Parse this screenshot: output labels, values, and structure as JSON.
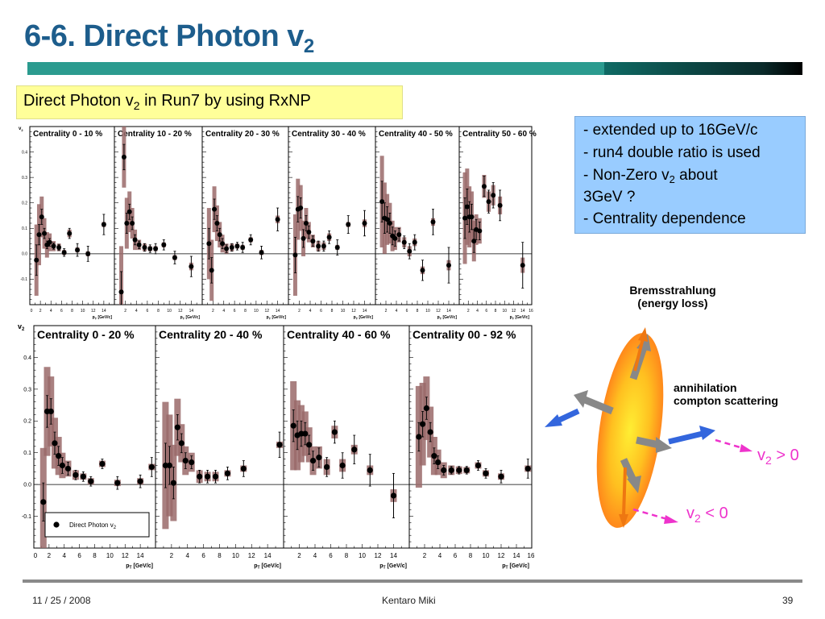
{
  "slide": {
    "title_main": "6-6. Direct Photon v",
    "title_sub": "2",
    "subtitle_main": "Direct Photon v",
    "subtitle_sub": "2",
    "subtitle_rest": " in Run7 by using RxNP"
  },
  "notes": {
    "line1": "- extended up to 16GeV/c",
    "line2": "- run4 double ratio is used",
    "line3a": "- Non-Zero v",
    "line3sub": "2",
    "line3b": " about",
    "line4": "3GeV ?",
    "line5": "- Centrality dependence"
  },
  "diagram": {
    "brem_line1": "Bremsstrahlung",
    "brem_line2": "(energy loss)",
    "ann_line1": "annihilation",
    "ann_line2": "compton scattering",
    "v2pos_a": "v",
    "v2pos_sub": "2",
    "v2pos_b": " > 0",
    "v2neg_a": "v",
    "v2neg_sub": "2",
    "v2neg_b": " < 0",
    "colors": {
      "ellipse_outer": "#ff7a1a",
      "ellipse_inner": "#ffee33",
      "arrow_blue": "#3366dd",
      "arrow_orange": "#ee7711",
      "arrow_gray": "#888888",
      "arrow_pink": "#ee33cc"
    }
  },
  "footer": {
    "date": "11 / 25 / 2008",
    "author": "Kentaro Miki",
    "page": "39"
  },
  "chart_data": [
    {
      "type": "scatter",
      "title": "Centrality 0 - 10 %",
      "ylim": [
        -0.2,
        0.5
      ],
      "xlim": [
        0,
        16
      ],
      "yticks": [
        "0.4",
        "0.3",
        "0.2",
        "0.1",
        "0.0",
        "-0.1"
      ],
      "xticks": [
        "0",
        "2",
        "4",
        "6",
        "8",
        "10",
        "12",
        "14"
      ],
      "ylabel": "v",
      "ylabel_sub": "2",
      "xlabel": "p",
      "xlabel_sub": "T",
      "xlabel_unit": "[GeV/c]",
      "points": [
        {
          "x": 1.25,
          "y": -0.025,
          "err": 0.06,
          "sys": 0.14
        },
        {
          "x": 1.75,
          "y": 0.075,
          "err": 0.04,
          "sys": 0.12
        },
        {
          "x": 2.25,
          "y": 0.145,
          "err": 0.03,
          "sys": 0.08
        },
        {
          "x": 2.75,
          "y": 0.08,
          "err": 0.02,
          "sys": 0.06
        },
        {
          "x": 3.25,
          "y": 0.035,
          "err": 0.015,
          "sys": 0.05
        },
        {
          "x": 3.75,
          "y": 0.045,
          "err": 0.015,
          "sys": 0.035
        },
        {
          "x": 4.5,
          "y": 0.03,
          "err": 0.012,
          "sys": 0.02
        },
        {
          "x": 5.5,
          "y": 0.025,
          "err": 0.012,
          "sys": 0.015
        },
        {
          "x": 6.5,
          "y": 0.005,
          "err": 0.015,
          "sys": 0.01
        },
        {
          "x": 7.5,
          "y": 0.08,
          "err": 0.02,
          "sys": 0.015
        },
        {
          "x": 9,
          "y": 0.015,
          "err": 0.025,
          "sys": 0.01
        },
        {
          "x": 11,
          "y": 0.0,
          "err": 0.03,
          "sys": 0.01
        },
        {
          "x": 14,
          "y": 0.115,
          "err": 0.04,
          "sys": 0.01
        }
      ]
    },
    {
      "type": "scatter",
      "title": "Centrality 10 - 20 %",
      "ylim": [
        -0.2,
        0.5
      ],
      "xlim": [
        0,
        16
      ],
      "xticks": [
        "2",
        "4",
        "6",
        "8",
        "10",
        "12",
        "14"
      ],
      "xlabel": "p",
      "xlabel_sub": "T",
      "xlabel_unit": "[GeV/c]",
      "points": [
        {
          "x": 1.25,
          "y": -0.15,
          "err": 0.08,
          "sys": 0.18
        },
        {
          "x": 1.75,
          "y": 0.38,
          "err": 0.05,
          "sys": 0.12
        },
        {
          "x": 2.25,
          "y": 0.12,
          "err": 0.04,
          "sys": 0.1
        },
        {
          "x": 2.75,
          "y": 0.165,
          "err": 0.03,
          "sys": 0.08
        },
        {
          "x": 3.25,
          "y": 0.12,
          "err": 0.025,
          "sys": 0.06
        },
        {
          "x": 3.75,
          "y": 0.055,
          "err": 0.02,
          "sys": 0.04
        },
        {
          "x": 4.5,
          "y": 0.035,
          "err": 0.015,
          "sys": 0.02
        },
        {
          "x": 5.5,
          "y": 0.025,
          "err": 0.015,
          "sys": 0.015
        },
        {
          "x": 6.5,
          "y": 0.02,
          "err": 0.015,
          "sys": 0.01
        },
        {
          "x": 7.5,
          "y": 0.02,
          "err": 0.02,
          "sys": 0.01
        },
        {
          "x": 9,
          "y": 0.035,
          "err": 0.02,
          "sys": 0.01
        },
        {
          "x": 11,
          "y": -0.015,
          "err": 0.025,
          "sys": 0.01
        },
        {
          "x": 14,
          "y": -0.05,
          "err": 0.04,
          "sys": 0.015
        }
      ]
    },
    {
      "type": "scatter",
      "title": "Centrality 20 - 30 %",
      "ylim": [
        -0.2,
        0.5
      ],
      "xlim": [
        0,
        16
      ],
      "xticks": [
        "2",
        "4",
        "6",
        "8",
        "10",
        "12",
        "14"
      ],
      "xlabel": "p",
      "xlabel_sub": "T",
      "xlabel_unit": "[GeV/c]",
      "points": [
        {
          "x": 1.25,
          "y": 0.04,
          "err": 0.06,
          "sys": 0.14
        },
        {
          "x": 1.75,
          "y": -0.065,
          "err": 0.05,
          "sys": 0.12
        },
        {
          "x": 2.25,
          "y": 0.175,
          "err": 0.04,
          "sys": 0.09
        },
        {
          "x": 2.75,
          "y": 0.12,
          "err": 0.03,
          "sys": 0.07
        },
        {
          "x": 3.25,
          "y": 0.075,
          "err": 0.025,
          "sys": 0.05
        },
        {
          "x": 3.75,
          "y": 0.04,
          "err": 0.02,
          "sys": 0.035
        },
        {
          "x": 4.5,
          "y": 0.02,
          "err": 0.015,
          "sys": 0.02
        },
        {
          "x": 5.5,
          "y": 0.025,
          "err": 0.015,
          "sys": 0.015
        },
        {
          "x": 6.5,
          "y": 0.03,
          "err": 0.015,
          "sys": 0.01
        },
        {
          "x": 7.5,
          "y": 0.025,
          "err": 0.02,
          "sys": 0.01
        },
        {
          "x": 9,
          "y": 0.055,
          "err": 0.02,
          "sys": 0.01
        },
        {
          "x": 11,
          "y": 0.005,
          "err": 0.025,
          "sys": 0.01
        },
        {
          "x": 14,
          "y": 0.135,
          "err": 0.045,
          "sys": 0.015
        }
      ]
    },
    {
      "type": "scatter",
      "title": "Centrality 30 - 40 %",
      "ylim": [
        -0.2,
        0.5
      ],
      "xlim": [
        0,
        16
      ],
      "xticks": [
        "2",
        "4",
        "6",
        "8",
        "10",
        "12",
        "14"
      ],
      "xlabel": "p",
      "xlabel_sub": "T",
      "xlabel_unit": "[GeV/c]",
      "points": [
        {
          "x": 1.25,
          "y": -0.005,
          "err": 0.07,
          "sys": 0.16
        },
        {
          "x": 1.75,
          "y": 0.175,
          "err": 0.05,
          "sys": 0.12
        },
        {
          "x": 2.25,
          "y": 0.18,
          "err": 0.04,
          "sys": 0.09
        },
        {
          "x": 2.75,
          "y": 0.06,
          "err": 0.035,
          "sys": 0.07
        },
        {
          "x": 3.25,
          "y": 0.12,
          "err": 0.03,
          "sys": 0.06
        },
        {
          "x": 3.75,
          "y": 0.085,
          "err": 0.025,
          "sys": 0.04
        },
        {
          "x": 4.5,
          "y": 0.05,
          "err": 0.02,
          "sys": 0.025
        },
        {
          "x": 5.5,
          "y": 0.03,
          "err": 0.02,
          "sys": 0.02
        },
        {
          "x": 6.5,
          "y": 0.03,
          "err": 0.02,
          "sys": 0.015
        },
        {
          "x": 7.5,
          "y": 0.065,
          "err": 0.025,
          "sys": 0.015
        },
        {
          "x": 9,
          "y": 0.025,
          "err": 0.03,
          "sys": 0.01
        },
        {
          "x": 11,
          "y": 0.115,
          "err": 0.035,
          "sys": 0.01
        },
        {
          "x": 14,
          "y": 0.12,
          "err": 0.05,
          "sys": 0.015
        }
      ]
    },
    {
      "type": "scatter",
      "title": "Centrality 40 - 50 %",
      "ylim": [
        -0.2,
        0.5
      ],
      "xlim": [
        0,
        16
      ],
      "xticks": [
        "2",
        "4",
        "6",
        "8",
        "10",
        "12",
        "14"
      ],
      "xlabel": "p",
      "xlabel_sub": "T",
      "xlabel_unit": "[GeV/c]",
      "points": [
        {
          "x": 1.25,
          "y": 0.205,
          "err": 0.08,
          "sys": 0.18
        },
        {
          "x": 1.75,
          "y": 0.14,
          "err": 0.06,
          "sys": 0.14
        },
        {
          "x": 2.25,
          "y": 0.135,
          "err": 0.05,
          "sys": 0.1
        },
        {
          "x": 2.75,
          "y": 0.12,
          "err": 0.04,
          "sys": 0.08
        },
        {
          "x": 3.25,
          "y": 0.07,
          "err": 0.035,
          "sys": 0.06
        },
        {
          "x": 3.75,
          "y": 0.06,
          "err": 0.03,
          "sys": 0.045
        },
        {
          "x": 4.5,
          "y": 0.075,
          "err": 0.025,
          "sys": 0.03
        },
        {
          "x": 5.5,
          "y": 0.045,
          "err": 0.025,
          "sys": 0.02
        },
        {
          "x": 6.5,
          "y": 0.01,
          "err": 0.03,
          "sys": 0.02
        },
        {
          "x": 7.5,
          "y": 0.045,
          "err": 0.03,
          "sys": 0.015
        },
        {
          "x": 9,
          "y": -0.065,
          "err": 0.04,
          "sys": 0.015
        },
        {
          "x": 11,
          "y": 0.125,
          "err": 0.05,
          "sys": 0.015
        },
        {
          "x": 14,
          "y": -0.045,
          "err": 0.07,
          "sys": 0.02
        }
      ]
    },
    {
      "type": "scatter",
      "title": "Centrality 50 - 60 %",
      "ylim": [
        -0.2,
        0.5
      ],
      "xlim": [
        0,
        16
      ],
      "xticks": [
        "2",
        "4",
        "6",
        "8",
        "10",
        "12",
        "14",
        "16"
      ],
      "xlabel": "p",
      "xlabel_sub": "T",
      "xlabel_unit": "[GeV/c]",
      "points": [
        {
          "x": 1.25,
          "y": 0.14,
          "err": 0.08,
          "sys": 0.18
        },
        {
          "x": 1.75,
          "y": 0.185,
          "err": 0.07,
          "sys": 0.15
        },
        {
          "x": 2.25,
          "y": 0.145,
          "err": 0.06,
          "sys": 0.12
        },
        {
          "x": 2.75,
          "y": 0.145,
          "err": 0.05,
          "sys": 0.1
        },
        {
          "x": 3.25,
          "y": 0.05,
          "err": 0.045,
          "sys": 0.08
        },
        {
          "x": 3.75,
          "y": 0.095,
          "err": 0.04,
          "sys": 0.06
        },
        {
          "x": 4.5,
          "y": 0.09,
          "err": 0.035,
          "sys": 0.05
        },
        {
          "x": 5.5,
          "y": 0.265,
          "err": 0.04,
          "sys": 0.045
        },
        {
          "x": 6.5,
          "y": 0.205,
          "err": 0.045,
          "sys": 0.04
        },
        {
          "x": 7.5,
          "y": 0.23,
          "err": 0.05,
          "sys": 0.04
        },
        {
          "x": 9,
          "y": 0.19,
          "err": 0.06,
          "sys": 0.035
        },
        {
          "x": 14,
          "y": -0.045,
          "err": 0.09,
          "sys": 0.03
        }
      ]
    },
    {
      "type": "scatter",
      "title": "Centrality 0 - 20 %",
      "ylim": [
        -0.2,
        0.5
      ],
      "xlim": [
        0,
        16
      ],
      "yticks": [
        "0.4",
        "0.3",
        "0.2",
        "0.1",
        "0.0",
        "-0.1"
      ],
      "xticks": [
        "0",
        "2",
        "4",
        "6",
        "8",
        "10",
        "12",
        "14"
      ],
      "ylabel": "v",
      "ylabel_sub": "2",
      "xlabel": "p",
      "xlabel_sub": "T",
      "xlabel_unit": "[GeV/c]",
      "legend": {
        "label": "Direct Photon v",
        "label_sub": "2",
        "position": "bottom-right"
      },
      "points": [
        {
          "x": 1.25,
          "y": -0.055,
          "err": 0.06,
          "sys": 0.17
        },
        {
          "x": 1.75,
          "y": 0.23,
          "err": 0.05,
          "sys": 0.14
        },
        {
          "x": 2.25,
          "y": 0.23,
          "err": 0.04,
          "sys": 0.11
        },
        {
          "x": 2.75,
          "y": 0.13,
          "err": 0.035,
          "sys": 0.08
        },
        {
          "x": 3.25,
          "y": 0.09,
          "err": 0.03,
          "sys": 0.06
        },
        {
          "x": 3.75,
          "y": 0.06,
          "err": 0.025,
          "sys": 0.04
        },
        {
          "x": 4.5,
          "y": 0.05,
          "err": 0.02,
          "sys": 0.025
        },
        {
          "x": 5.5,
          "y": 0.03,
          "err": 0.015,
          "sys": 0.015
        },
        {
          "x": 6.5,
          "y": 0.025,
          "err": 0.015,
          "sys": 0.01
        },
        {
          "x": 7.5,
          "y": 0.01,
          "err": 0.015,
          "sys": 0.01
        },
        {
          "x": 9,
          "y": 0.065,
          "err": 0.015,
          "sys": 0.01
        },
        {
          "x": 11,
          "y": 0.005,
          "err": 0.02,
          "sys": 0.01
        },
        {
          "x": 14,
          "y": 0.01,
          "err": 0.02,
          "sys": 0.01
        },
        {
          "x": 15.5,
          "y": 0.055,
          "err": 0.03,
          "sys": 0.01
        }
      ]
    },
    {
      "type": "scatter",
      "title": "Centrality 20 - 40 %",
      "ylim": [
        -0.2,
        0.5
      ],
      "xlim": [
        0,
        16
      ],
      "xticks": [
        "2",
        "4",
        "6",
        "8",
        "10",
        "12",
        "14"
      ],
      "xlabel": "p",
      "xlabel_sub": "T",
      "xlabel_unit": "[GeV/c]",
      "points": [
        {
          "x": 1.25,
          "y": 0.06,
          "err": 0.07,
          "sys": 0.2
        },
        {
          "x": 1.75,
          "y": 0.06,
          "err": 0.06,
          "sys": 0.16
        },
        {
          "x": 2.25,
          "y": 0.005,
          "err": 0.05,
          "sys": 0.12
        },
        {
          "x": 2.75,
          "y": 0.18,
          "err": 0.04,
          "sys": 0.09
        },
        {
          "x": 3.25,
          "y": 0.13,
          "err": 0.03,
          "sys": 0.06
        },
        {
          "x": 3.75,
          "y": 0.075,
          "err": 0.025,
          "sys": 0.045
        },
        {
          "x": 4.5,
          "y": 0.07,
          "err": 0.02,
          "sys": 0.03
        },
        {
          "x": 5.5,
          "y": 0.025,
          "err": 0.02,
          "sys": 0.02
        },
        {
          "x": 6.5,
          "y": 0.025,
          "err": 0.02,
          "sys": 0.015
        },
        {
          "x": 7.5,
          "y": 0.025,
          "err": 0.02,
          "sys": 0.015
        },
        {
          "x": 9,
          "y": 0.035,
          "err": 0.02,
          "sys": 0.01
        },
        {
          "x": 11,
          "y": 0.05,
          "err": 0.025,
          "sys": 0.01
        },
        {
          "x": 15.5,
          "y": 0.125,
          "err": 0.04,
          "sys": 0.01
        }
      ]
    },
    {
      "type": "scatter",
      "title": "Centrality 40 - 60 %",
      "ylim": [
        -0.2,
        0.5
      ],
      "xlim": [
        0,
        16
      ],
      "xticks": [
        "2",
        "4",
        "6",
        "8",
        "10",
        "12",
        "14"
      ],
      "xlabel": "p",
      "xlabel_sub": "T",
      "xlabel_unit": "[GeV/c]",
      "points": [
        {
          "x": 1.25,
          "y": 0.185,
          "err": 0.05,
          "sys": 0.14
        },
        {
          "x": 1.75,
          "y": 0.155,
          "err": 0.045,
          "sys": 0.11
        },
        {
          "x": 2.25,
          "y": 0.16,
          "err": 0.04,
          "sys": 0.09
        },
        {
          "x": 2.75,
          "y": 0.16,
          "err": 0.035,
          "sys": 0.07
        },
        {
          "x": 3.25,
          "y": 0.125,
          "err": 0.03,
          "sys": 0.055
        },
        {
          "x": 3.75,
          "y": 0.075,
          "err": 0.03,
          "sys": 0.045
        },
        {
          "x": 4.5,
          "y": 0.085,
          "err": 0.03,
          "sys": 0.035
        },
        {
          "x": 5.5,
          "y": 0.055,
          "err": 0.03,
          "sys": 0.025
        },
        {
          "x": 6.5,
          "y": 0.165,
          "err": 0.035,
          "sys": 0.02
        },
        {
          "x": 7.5,
          "y": 0.06,
          "err": 0.04,
          "sys": 0.02
        },
        {
          "x": 9,
          "y": 0.11,
          "err": 0.045,
          "sys": 0.015
        },
        {
          "x": 11,
          "y": 0.045,
          "err": 0.05,
          "sys": 0.015
        },
        {
          "x": 14,
          "y": -0.035,
          "err": 0.07,
          "sys": 0.02
        }
      ]
    },
    {
      "type": "scatter",
      "title": "Centrality 00 - 92 %",
      "ylim": [
        -0.2,
        0.5
      ],
      "xlim": [
        0,
        16
      ],
      "xticks": [
        "2",
        "4",
        "6",
        "8",
        "10",
        "12",
        "14",
        "16"
      ],
      "xlabel": "p",
      "xlabel_sub": "T",
      "xlabel_unit": "[GeV/c]",
      "points": [
        {
          "x": 1.25,
          "y": 0.15,
          "err": 0.045,
          "sys": 0.16
        },
        {
          "x": 1.75,
          "y": 0.19,
          "err": 0.04,
          "sys": 0.13
        },
        {
          "x": 2.25,
          "y": 0.24,
          "err": 0.035,
          "sys": 0.1
        },
        {
          "x": 2.75,
          "y": 0.165,
          "err": 0.03,
          "sys": 0.08
        },
        {
          "x": 3.25,
          "y": 0.09,
          "err": 0.025,
          "sys": 0.06
        },
        {
          "x": 3.75,
          "y": 0.07,
          "err": 0.02,
          "sys": 0.04
        },
        {
          "x": 4.5,
          "y": 0.045,
          "err": 0.015,
          "sys": 0.025
        },
        {
          "x": 5.5,
          "y": 0.045,
          "err": 0.012,
          "sys": 0.015
        },
        {
          "x": 6.5,
          "y": 0.045,
          "err": 0.012,
          "sys": 0.012
        },
        {
          "x": 7.5,
          "y": 0.045,
          "err": 0.012,
          "sys": 0.01
        },
        {
          "x": 9,
          "y": 0.06,
          "err": 0.015,
          "sys": 0.01
        },
        {
          "x": 10,
          "y": 0.035,
          "err": 0.015,
          "sys": 0.01
        },
        {
          "x": 12,
          "y": 0.025,
          "err": 0.02,
          "sys": 0.01
        },
        {
          "x": 15.5,
          "y": 0.05,
          "err": 0.03,
          "sys": 0.01
        }
      ]
    }
  ]
}
